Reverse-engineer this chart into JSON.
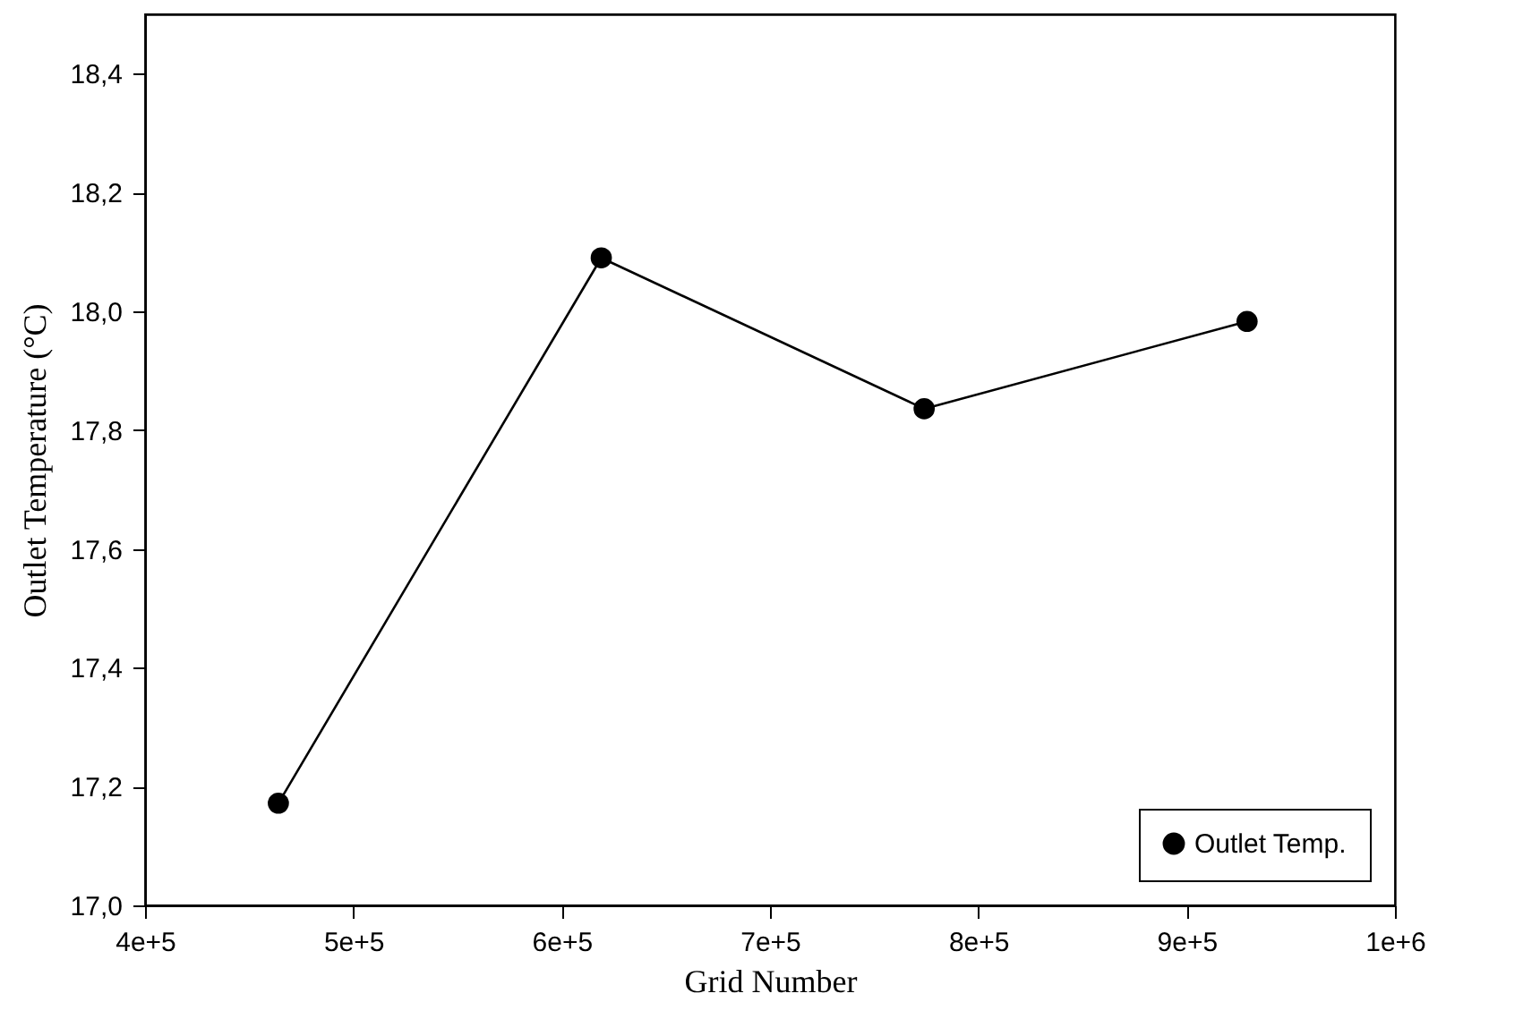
{
  "chart_data": {
    "type": "line",
    "xlabel": "Grid Number",
    "ylabel": "Outlet Temperature (°C)",
    "x": [
      464000,
      619000,
      774000,
      929000
    ],
    "series": [
      {
        "name": "Outlet Temp.",
        "color": "#000000",
        "values": [
          17.172,
          18.09,
          17.836,
          17.983
        ]
      }
    ],
    "xlim": [
      400000,
      1000000
    ],
    "xticks": [
      {
        "value": 400000,
        "label": "4e+5"
      },
      {
        "value": 500000,
        "label": "5e+5"
      },
      {
        "value": 600000,
        "label": "6e+5"
      },
      {
        "value": 700000,
        "label": "7e+5"
      },
      {
        "value": 800000,
        "label": "8e+5"
      },
      {
        "value": 900000,
        "label": "9e+5"
      },
      {
        "value": 1000000,
        "label": "1e+6"
      }
    ],
    "ylim": [
      17.0,
      18.5
    ],
    "yticks": [
      {
        "value": 17.0,
        "label": "17,0"
      },
      {
        "value": 17.2,
        "label": "17,2"
      },
      {
        "value": 17.4,
        "label": "17,4"
      },
      {
        "value": 17.6,
        "label": "17,6"
      },
      {
        "value": 17.8,
        "label": "17,8"
      },
      {
        "value": 18.0,
        "label": "18,0"
      },
      {
        "value": 18.2,
        "label": "18,2"
      },
      {
        "value": 18.4,
        "label": "18,4"
      }
    ],
    "grid": false,
    "legend": "bottom right",
    "marker": "circle",
    "line_style": "solid"
  }
}
